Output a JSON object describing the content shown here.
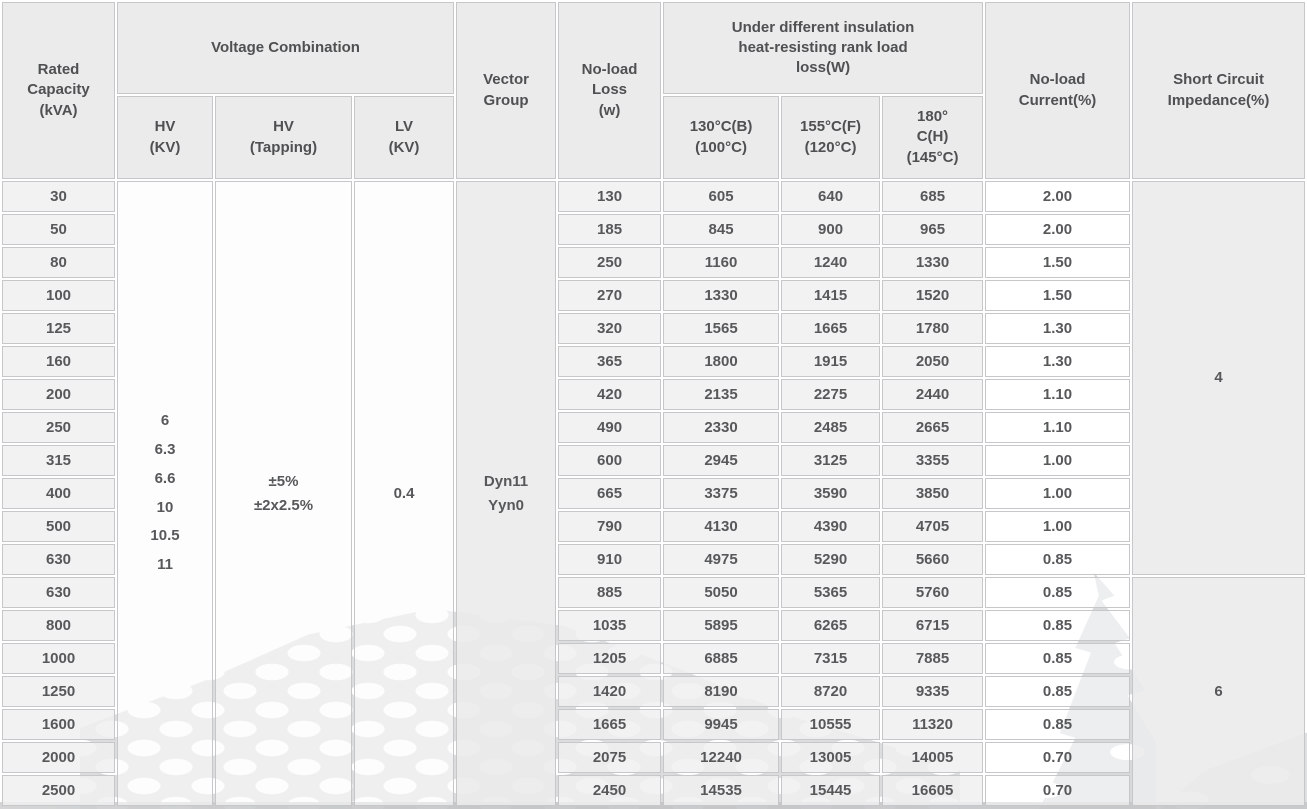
{
  "table": {
    "headers": {
      "rated_capacity": "Rated\nCapacity\n(kVA)",
      "voltage_combination": "Voltage Combination",
      "hv": "HV\n(KV)",
      "hv_tapping": "HV\n(Tapping)",
      "lv": "LV\n(KV)",
      "vector_group": "Vector\nGroup",
      "no_load_loss": "No-load\nLoss\n(w)",
      "load_loss_group": "Under different insulation\nheat-resisting rank load\nloss(W)",
      "loss_130": "130°C(B)\n(100°C)",
      "loss_155": "155°C(F)\n(120°C)",
      "loss_180": "180°\nC(H)\n(145°C)",
      "no_load_current": "No-load\nCurrent(%)",
      "short_circuit_impedance": "Short Circuit\nImpedance(%)"
    },
    "merged": {
      "hv_kv": "6\n6.3\n6.6\n10\n10.5\n11",
      "hv_tapping": "±5%\n±2x2.5%",
      "lv_kv": "0.4",
      "vector_group": "Dyn11\nYyn0"
    },
    "impedance_groups": [
      {
        "value": "4",
        "span": 12
      },
      {
        "value": "6",
        "span": 7
      }
    ],
    "rows": [
      {
        "capacity": "30",
        "no_load_loss": "130",
        "loss_130": "605",
        "loss_155": "640",
        "loss_180": "685",
        "no_load_current": "2.00"
      },
      {
        "capacity": "50",
        "no_load_loss": "185",
        "loss_130": "845",
        "loss_155": "900",
        "loss_180": "965",
        "no_load_current": "2.00"
      },
      {
        "capacity": "80",
        "no_load_loss": "250",
        "loss_130": "1160",
        "loss_155": "1240",
        "loss_180": "1330",
        "no_load_current": "1.50"
      },
      {
        "capacity": "100",
        "no_load_loss": "270",
        "loss_130": "1330",
        "loss_155": "1415",
        "loss_180": "1520",
        "no_load_current": "1.50"
      },
      {
        "capacity": "125",
        "no_load_loss": "320",
        "loss_130": "1565",
        "loss_155": "1665",
        "loss_180": "1780",
        "no_load_current": "1.30"
      },
      {
        "capacity": "160",
        "no_load_loss": "365",
        "loss_130": "1800",
        "loss_155": "1915",
        "loss_180": "2050",
        "no_load_current": "1.30"
      },
      {
        "capacity": "200",
        "no_load_loss": "420",
        "loss_130": "2135",
        "loss_155": "2275",
        "loss_180": "2440",
        "no_load_current": "1.10"
      },
      {
        "capacity": "250",
        "no_load_loss": "490",
        "loss_130": "2330",
        "loss_155": "2485",
        "loss_180": "2665",
        "no_load_current": "1.10"
      },
      {
        "capacity": "315",
        "no_load_loss": "600",
        "loss_130": "2945",
        "loss_155": "3125",
        "loss_180": "3355",
        "no_load_current": "1.00"
      },
      {
        "capacity": "400",
        "no_load_loss": "665",
        "loss_130": "3375",
        "loss_155": "3590",
        "loss_180": "3850",
        "no_load_current": "1.00"
      },
      {
        "capacity": "500",
        "no_load_loss": "790",
        "loss_130": "4130",
        "loss_155": "4390",
        "loss_180": "4705",
        "no_load_current": "1.00"
      },
      {
        "capacity": "630",
        "no_load_loss": "910",
        "loss_130": "4975",
        "loss_155": "5290",
        "loss_180": "5660",
        "no_load_current": "0.85"
      },
      {
        "capacity": "630",
        "no_load_loss": "885",
        "loss_130": "5050",
        "loss_155": "5365",
        "loss_180": "5760",
        "no_load_current": "0.85"
      },
      {
        "capacity": "800",
        "no_load_loss": "1035",
        "loss_130": "5895",
        "loss_155": "6265",
        "loss_180": "6715",
        "no_load_current": "0.85"
      },
      {
        "capacity": "1000",
        "no_load_loss": "1205",
        "loss_130": "6885",
        "loss_155": "7315",
        "loss_180": "7885",
        "no_load_current": "0.85"
      },
      {
        "capacity": "1250",
        "no_load_loss": "1420",
        "loss_130": "8190",
        "loss_155": "8720",
        "loss_180": "9335",
        "no_load_current": "0.85"
      },
      {
        "capacity": "1600",
        "no_load_loss": "1665",
        "loss_130": "9945",
        "loss_155": "10555",
        "loss_180": "11320",
        "no_load_current": "0.85"
      },
      {
        "capacity": "2000",
        "no_load_loss": "2075",
        "loss_130": "12240",
        "loss_155": "13005",
        "loss_180": "14005",
        "no_load_current": "0.70"
      },
      {
        "capacity": "2500",
        "no_load_loss": "2450",
        "loss_130": "14535",
        "loss_155": "15445",
        "loss_180": "16605",
        "no_load_current": "0.70"
      }
    ]
  },
  "colors": {
    "header_bg": "#e7e7e8",
    "cell_gray_bg": "#f0f0f1",
    "cell_white_bg": "#fdfdfd",
    "cell_shade_bg": "#ebebec",
    "border": "#c6c7c9",
    "text": "#56585a",
    "watermark_gray": "#d6d7d9"
  }
}
